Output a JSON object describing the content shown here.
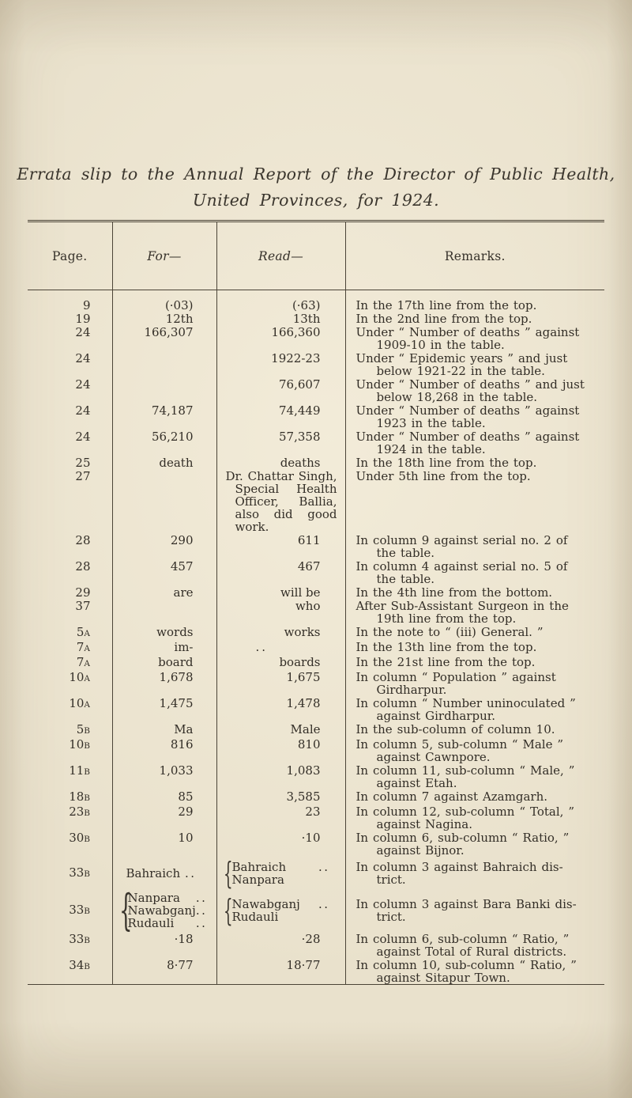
{
  "colors": {
    "paper": "#e9e1cc",
    "ink": "#332e27",
    "rule": "#4b4437"
  },
  "title": {
    "line1": "Errata slip to the Annual Report of the Director of Public Health,",
    "line2": "United Provinces, for 1924."
  },
  "table": {
    "headers": {
      "page": "Page.",
      "for_col": "For—",
      "read_col": "Read—",
      "remarks": "Remarks."
    },
    "rows": [
      {
        "page": "9",
        "for": "(·03)",
        "read": "(·63)",
        "remarks": "In the 17th line from the top."
      },
      {
        "page": "19",
        "for": "12th",
        "read": "13th",
        "remarks": "In the 2nd line from the top."
      },
      {
        "page": "24",
        "for": "166,307",
        "read": "166,360",
        "remarks": "Under “ Number of deaths ” against\n1909-10 in the table."
      },
      {
        "page": "24",
        "for": "",
        "read": "1922-23",
        "remarks": "Under “ Epidemic years ” and just\nbelow 1921-22 in the table."
      },
      {
        "page": "24",
        "for": "",
        "read": "76,607",
        "remarks": "Under “ Number of deaths ” and just\nbelow 18,268 in the table."
      },
      {
        "page": "24",
        "for": "74,187",
        "read": "74,449",
        "remarks": "Under “ Number of deaths ” against\n1923 in the table."
      },
      {
        "page": "24",
        "for": "56,210",
        "read": "57,358",
        "remarks": "Under “ Number of deaths ” against\n1924 in the table."
      },
      {
        "page": "25",
        "for": "death",
        "read": "deaths",
        "remarks": "In the 18th line from the top."
      },
      {
        "page": "27",
        "for": "",
        "read": {
          "t": "block",
          "lines": [
            "Dr. Chattar Singh,",
            "Special Health",
            "Officer, Ballia,",
            "also did good",
            "work."
          ]
        },
        "remarks": "Under 5th line from the top."
      },
      {
        "page": "28",
        "for": "290",
        "read": "611",
        "remarks": "In column 9 against serial no. 2 of\nthe table."
      },
      {
        "page": "28",
        "for": "457",
        "read": "467",
        "remarks": "In column 4 against serial no. 5 of\nthe table."
      },
      {
        "page": "29",
        "for": "are",
        "read": "will be",
        "remarks": "In the 4th line from the bottom."
      },
      {
        "page": "37",
        "for": "",
        "read": "who",
        "remarks": "After Sub-Assistant Surgeon in the\n19th line from the top."
      },
      {
        "page": "5A",
        "for": "words",
        "read": "works",
        "remarks": "In the note to “ (iii) General. ”"
      },
      {
        "page": "7A",
        "for": "im-",
        "read": "..",
        "remarks": "In the 13th line from the top."
      },
      {
        "page": "7A",
        "for": "board",
        "read": "boards",
        "remarks": "In the 21st line from the top."
      },
      {
        "page": "10A",
        "for": "1,678",
        "read": "1,675",
        "remarks": "In column “ Population ” against\nGirdharpur."
      },
      {
        "page": "10A",
        "for": "1,475",
        "read": "1,478",
        "remarks": "In column “ Number uninoculated ”\nagainst Girdharpur."
      },
      {
        "page": "5B",
        "for": "Ma",
        "read": "Male",
        "remarks": "In the sub-column of column 10."
      },
      {
        "page": "10B",
        "for": "816",
        "read": "810",
        "remarks": "In column 5, sub-column “ Male ”\nagainst Cawnpore."
      },
      {
        "page": "11B",
        "for": "1,033",
        "read": "1,083",
        "remarks": "In column 11, sub-column “ Male, ”\nagainst Etah."
      },
      {
        "page": "18B",
        "for": "85",
        "read": "3,585",
        "remarks": "In column 7 against Azamgarh."
      },
      {
        "page": "23B",
        "for": "29",
        "read": "23",
        "remarks": "In column 12, sub-column “ Total, ”\nagainst Nagina."
      },
      {
        "page": "30B",
        "for": "10",
        "read": "·10",
        "remarks": "In column 6, sub-column “ Ratio, ”\nagainst Bijnor."
      },
      {
        "page": "33B",
        "for": {
          "t": "flush",
          "text": "Bahraich",
          "dots": ".."
        },
        "read": {
          "t": "brace",
          "items": [
            {
              "text": "Bahraich",
              "dots": ".."
            },
            {
              "text": "Nanpara"
            }
          ]
        },
        "remarks": "In column 3 against Bahraich dis-\ntrict.",
        "valign": "middle"
      },
      {
        "page": "33B",
        "for": {
          "t": "brace",
          "items": [
            {
              "text": "Nanpara",
              "dots": ".."
            },
            {
              "text": "Nawabganj",
              "dots": ".."
            },
            {
              "text": "Rudauli",
              "dots": ".."
            }
          ]
        },
        "read": {
          "t": "brace",
          "items": [
            {
              "text": "Nawabganj",
              "dots": ".."
            },
            {
              "text": "Rudauli"
            }
          ]
        },
        "remarks": "In column 3 against Bara Banki dis-\ntrict.",
        "valign": "middle"
      },
      {
        "page": "33B",
        "for": "·18",
        "read": "·28",
        "remarks": "In column 6, sub-column “ Ratio, ”\nagainst Total of Rural districts."
      },
      {
        "page": "34B",
        "for": "8·77",
        "read": "18·77",
        "remarks": "In column 10, sub-column “ Ratio, ”\nagainst Sitapur Town."
      }
    ]
  }
}
